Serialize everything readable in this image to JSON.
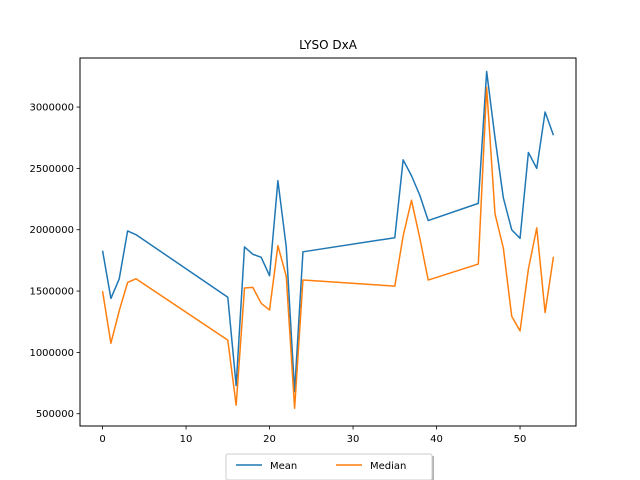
{
  "chart_data": {
    "type": "line",
    "title": "LYSO DxA",
    "xlabel": "",
    "ylabel": "",
    "xlim": [
      -2.7,
      56.7
    ],
    "ylim": [
      400000,
      3400000
    ],
    "x_ticks": [
      0,
      10,
      20,
      30,
      40,
      50
    ],
    "y_ticks": [
      500000,
      1000000,
      1500000,
      2000000,
      2500000,
      3000000
    ],
    "x_tick_labels": [
      "0",
      "10",
      "20",
      "30",
      "40",
      "50"
    ],
    "y_tick_labels": [
      "500000",
      "1000000",
      "1500000",
      "2000000",
      "2500000",
      "3000000"
    ],
    "grid": false,
    "legend": {
      "placement": "bottom-center",
      "columns": 2
    },
    "series": [
      {
        "name": "Mean",
        "color": "#1f77b4",
        "points": [
          [
            0,
            1830000
          ],
          [
            1,
            1440000
          ],
          [
            2,
            1600000
          ],
          [
            3,
            1990000
          ],
          [
            4,
            1960000
          ],
          [
            15,
            1450000
          ],
          [
            16,
            730000
          ],
          [
            17,
            1860000
          ],
          [
            18,
            1800000
          ],
          [
            19,
            1775000
          ],
          [
            20,
            1625000
          ],
          [
            21,
            2400000
          ],
          [
            22,
            1860000
          ],
          [
            23,
            680000
          ],
          [
            24,
            1820000
          ],
          [
            35,
            1935000
          ],
          [
            36,
            2570000
          ],
          [
            37,
            2440000
          ],
          [
            38,
            2280000
          ],
          [
            39,
            2075000
          ],
          [
            45,
            2215000
          ],
          [
            46,
            3290000
          ],
          [
            47,
            2750000
          ],
          [
            48,
            2260000
          ],
          [
            49,
            2000000
          ],
          [
            50,
            1930000
          ],
          [
            51,
            2630000
          ],
          [
            52,
            2500000
          ],
          [
            53,
            2960000
          ],
          [
            54,
            2770000
          ]
        ]
      },
      {
        "name": "Median",
        "color": "#ff7f0e",
        "points": [
          [
            0,
            1500000
          ],
          [
            1,
            1075000
          ],
          [
            2,
            1340000
          ],
          [
            3,
            1570000
          ],
          [
            4,
            1600000
          ],
          [
            15,
            1100000
          ],
          [
            16,
            570000
          ],
          [
            17,
            1525000
          ],
          [
            18,
            1530000
          ],
          [
            19,
            1400000
          ],
          [
            20,
            1345000
          ],
          [
            21,
            1870000
          ],
          [
            22,
            1620000
          ],
          [
            23,
            545000
          ],
          [
            24,
            1590000
          ],
          [
            35,
            1540000
          ],
          [
            36,
            1950000
          ],
          [
            37,
            2240000
          ],
          [
            38,
            1930000
          ],
          [
            39,
            1590000
          ],
          [
            45,
            1720000
          ],
          [
            46,
            3160000
          ],
          [
            47,
            2130000
          ],
          [
            48,
            1850000
          ],
          [
            49,
            1295000
          ],
          [
            50,
            1175000
          ],
          [
            51,
            1680000
          ],
          [
            52,
            2015000
          ],
          [
            53,
            1325000
          ],
          [
            54,
            1780000
          ]
        ]
      }
    ]
  }
}
